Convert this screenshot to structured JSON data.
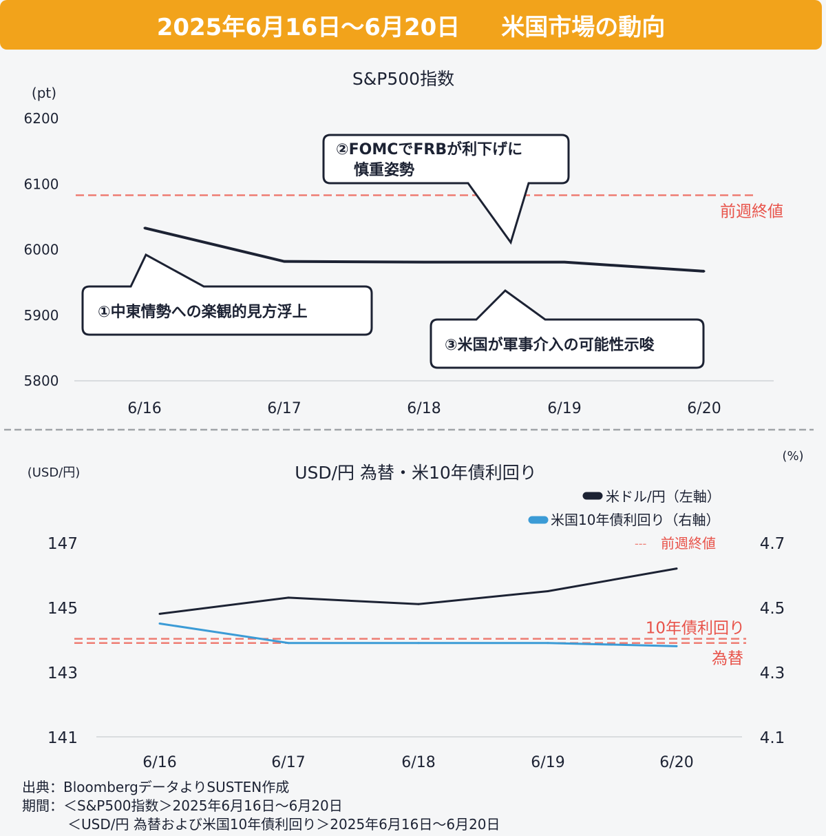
{
  "header": {
    "date_range": "2025年6月16日〜6月20日",
    "subject": "米国市場の動向"
  },
  "colors": {
    "accent": "#f2a31b",
    "line_dark": "#1c2233",
    "line_blue": "#3b9bd6",
    "ref_red": "#e8534a"
  },
  "chart_data": [
    {
      "type": "line",
      "title": "S&P500指数",
      "unit_label": "(pt)",
      "categories": [
        "6/16",
        "6/17",
        "6/18",
        "6/19",
        "6/20"
      ],
      "series": [
        {
          "name": "S&P500指数",
          "values": [
            6033,
            5982,
            5981,
            5981,
            5967
          ]
        }
      ],
      "ylim": [
        5800,
        6200
      ],
      "yticks": [
        5800,
        5900,
        6000,
        6100,
        6200
      ],
      "reference_lines": [
        {
          "label": "前週終値",
          "value": 6083
        }
      ],
      "annotations": [
        {
          "id": "a1",
          "text": "①中東情勢への楽観的見方浮上"
        },
        {
          "id": "a2",
          "text_line1": "②FOMCでFRBが利下げに",
          "text_line2": "慎重姿勢"
        },
        {
          "id": "a3",
          "text": "③米国が軍事介入の可能性示唆"
        }
      ]
    },
    {
      "type": "line",
      "title": "USD/円 為替・米10年債利回り",
      "left_unit_label": "(USD/円)",
      "right_unit_label": "(%)",
      "categories": [
        "6/16",
        "6/17",
        "6/18",
        "6/19",
        "6/20"
      ],
      "series": [
        {
          "name": "米ドル/円（左軸）",
          "axis": "left",
          "values": [
            144.8,
            145.3,
            145.1,
            145.5,
            146.2
          ]
        },
        {
          "name": "米国10年債利回り（右軸）",
          "axis": "right",
          "values": [
            4.45,
            4.39,
            4.39,
            4.39,
            4.38
          ]
        }
      ],
      "ylim_left": [
        141,
        147
      ],
      "yticks_left": [
        141,
        143,
        145,
        147
      ],
      "ylim_right": [
        4.1,
        4.7
      ],
      "yticks_right": [
        4.1,
        4.3,
        4.5,
        4.7
      ],
      "reference_lines": [
        {
          "label": "10年債利回り",
          "axis": "right",
          "value": 4.403
        },
        {
          "label": "為替",
          "axis": "left",
          "value": 143.9
        }
      ],
      "legend": {
        "usd": "米ドル/円（左軸）",
        "yield": "米国10年債利回り（右軸）",
        "prev_marker": "---",
        "prev": "前週終値"
      }
    }
  ],
  "footer": {
    "source": "出典：BloombergデータよりSUSTEN作成",
    "period_line1": "期間：＜S&P500指数＞2025年6月16日〜6月20日",
    "period_line2": "＜USD/円 為替および米国10年債利回り＞2025年6月16日〜6月20日"
  }
}
